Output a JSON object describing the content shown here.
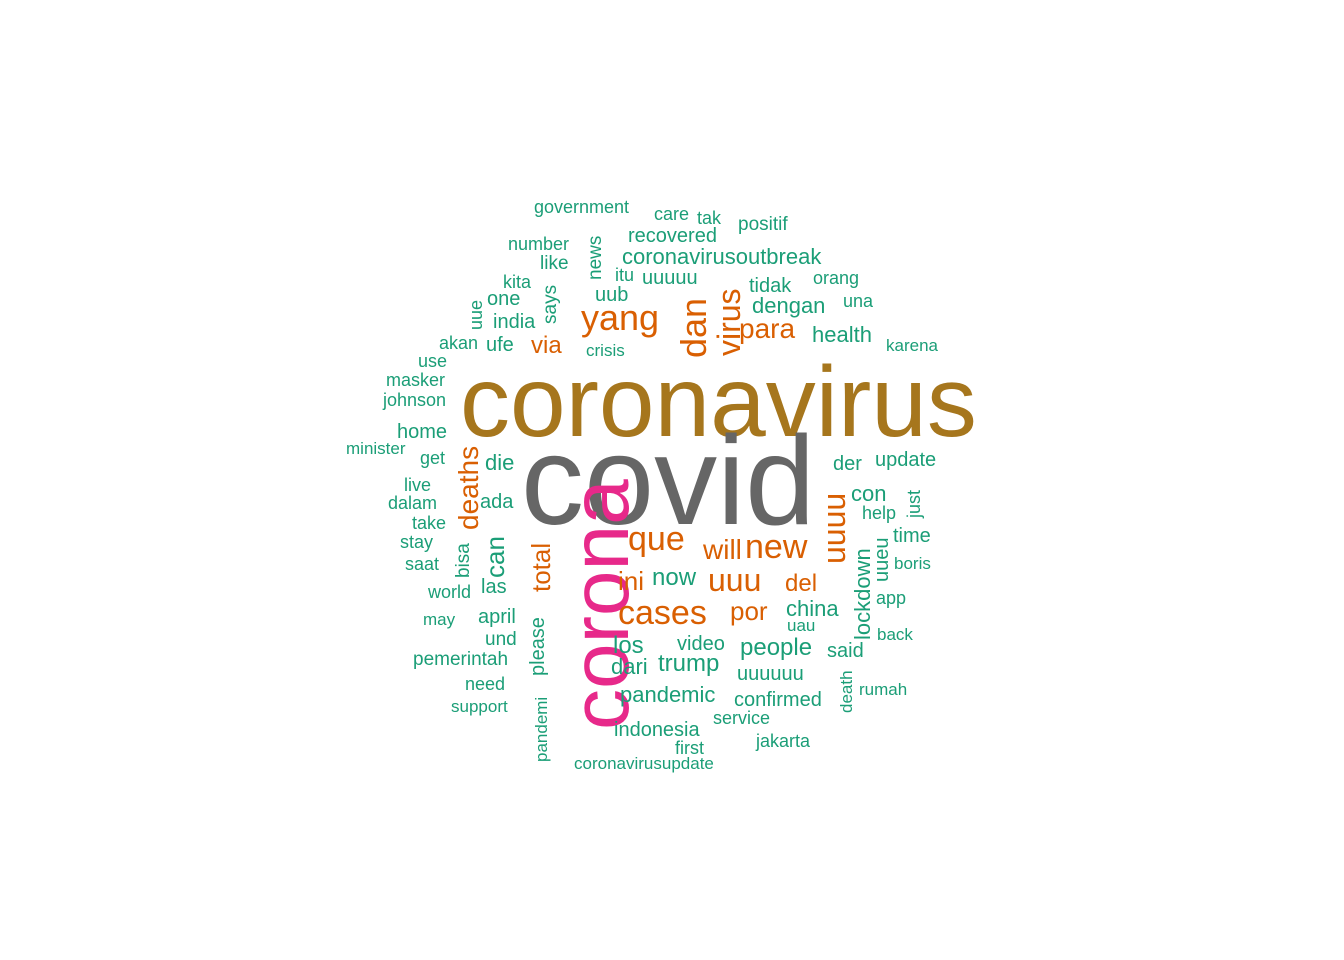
{
  "palette": {
    "green": "#1b9e77",
    "orange": "#d95f02",
    "gold": "#a6761d",
    "gray": "#666666",
    "pink": "#e7298a"
  },
  "words": [
    {
      "text": "coronavirus",
      "color": "gold"
    },
    {
      "text": "covid",
      "color": "gray"
    },
    {
      "text": "corona",
      "color": "pink"
    },
    {
      "text": "cases",
      "color": "orange"
    },
    {
      "text": "yang",
      "color": "orange"
    },
    {
      "text": "dan",
      "color": "orange"
    },
    {
      "text": "virus",
      "color": "orange"
    },
    {
      "text": "que",
      "color": "orange"
    },
    {
      "text": "uuuu",
      "color": "orange"
    },
    {
      "text": "new",
      "color": "orange"
    },
    {
      "text": "deaths",
      "color": "orange"
    },
    {
      "text": "para",
      "color": "orange"
    },
    {
      "text": "will",
      "color": "orange"
    },
    {
      "text": "uuu",
      "color": "orange"
    },
    {
      "text": "total",
      "color": "orange"
    },
    {
      "text": "por",
      "color": "orange"
    },
    {
      "text": "ini",
      "color": "orange"
    },
    {
      "text": "del",
      "color": "orange"
    },
    {
      "text": "via",
      "color": "orange"
    },
    {
      "text": "can",
      "color": "green"
    },
    {
      "text": "now",
      "color": "green"
    },
    {
      "text": "trump",
      "color": "green"
    },
    {
      "text": "people",
      "color": "green"
    },
    {
      "text": "lockdown",
      "color": "green"
    },
    {
      "text": "los",
      "color": "green"
    },
    {
      "text": "dari",
      "color": "green"
    },
    {
      "text": "china",
      "color": "green"
    },
    {
      "text": "pandemic",
      "color": "green"
    },
    {
      "text": "coronavirusoutbreak",
      "color": "green"
    },
    {
      "text": "dengan",
      "color": "green"
    },
    {
      "text": "health",
      "color": "green"
    },
    {
      "text": "indonesia",
      "color": "green"
    },
    {
      "text": "uuuuuu",
      "color": "green"
    },
    {
      "text": "confirmed",
      "color": "green"
    },
    {
      "text": "recovered",
      "color": "green"
    },
    {
      "text": "uuuuu",
      "color": "green"
    },
    {
      "text": "die",
      "color": "green"
    },
    {
      "text": "con",
      "color": "green"
    },
    {
      "text": "der",
      "color": "green"
    },
    {
      "text": "ada",
      "color": "green"
    },
    {
      "text": "las",
      "color": "green"
    },
    {
      "text": "april",
      "color": "green"
    },
    {
      "text": "please",
      "color": "green"
    },
    {
      "text": "video",
      "color": "green"
    },
    {
      "text": "home",
      "color": "green"
    },
    {
      "text": "tidak",
      "color": "green"
    },
    {
      "text": "india",
      "color": "green"
    },
    {
      "text": "one",
      "color": "green"
    },
    {
      "text": "uub",
      "color": "green"
    },
    {
      "text": "ufe",
      "color": "green"
    },
    {
      "text": "said",
      "color": "green"
    },
    {
      "text": "uueu",
      "color": "green"
    },
    {
      "text": "update",
      "color": "green"
    },
    {
      "text": "time",
      "color": "green"
    },
    {
      "text": "pemerintah",
      "color": "green"
    },
    {
      "text": "und",
      "color": "green"
    },
    {
      "text": "bisa",
      "color": "green"
    },
    {
      "text": "like",
      "color": "green"
    },
    {
      "text": "says",
      "color": "green"
    },
    {
      "text": "news",
      "color": "green"
    },
    {
      "text": "number",
      "color": "green"
    },
    {
      "text": "government",
      "color": "green"
    },
    {
      "text": "care",
      "color": "green"
    },
    {
      "text": "tak",
      "color": "green"
    },
    {
      "text": "positif",
      "color": "green"
    },
    {
      "text": "orang",
      "color": "green"
    },
    {
      "text": "una",
      "color": "green"
    },
    {
      "text": "kita",
      "color": "green"
    },
    {
      "text": "itu",
      "color": "green"
    },
    {
      "text": "uue",
      "color": "green"
    },
    {
      "text": "akan",
      "color": "green"
    },
    {
      "text": "crisis",
      "color": "green"
    },
    {
      "text": "karena",
      "color": "green"
    },
    {
      "text": "use",
      "color": "green"
    },
    {
      "text": "masker",
      "color": "green"
    },
    {
      "text": "johnson",
      "color": "green"
    },
    {
      "text": "minister",
      "color": "green"
    },
    {
      "text": "get",
      "color": "green"
    },
    {
      "text": "live",
      "color": "green"
    },
    {
      "text": "dalam",
      "color": "green"
    },
    {
      "text": "take",
      "color": "green"
    },
    {
      "text": "stay",
      "color": "green"
    },
    {
      "text": "saat",
      "color": "green"
    },
    {
      "text": "world",
      "color": "green"
    },
    {
      "text": "may",
      "color": "green"
    },
    {
      "text": "need",
      "color": "green"
    },
    {
      "text": "support",
      "color": "green"
    },
    {
      "text": "pandemi",
      "color": "green"
    },
    {
      "text": "coronavirusupdate",
      "color": "green"
    },
    {
      "text": "first",
      "color": "green"
    },
    {
      "text": "service",
      "color": "green"
    },
    {
      "text": "jakarta",
      "color": "green"
    },
    {
      "text": "death",
      "color": "green"
    },
    {
      "text": "rumah",
      "color": "green"
    },
    {
      "text": "back",
      "color": "green"
    },
    {
      "text": "app",
      "color": "green"
    },
    {
      "text": "boris",
      "color": "green"
    },
    {
      "text": "help",
      "color": "green"
    },
    {
      "text": "just",
      "color": "green"
    },
    {
      "text": "uau",
      "color": "green"
    }
  ]
}
